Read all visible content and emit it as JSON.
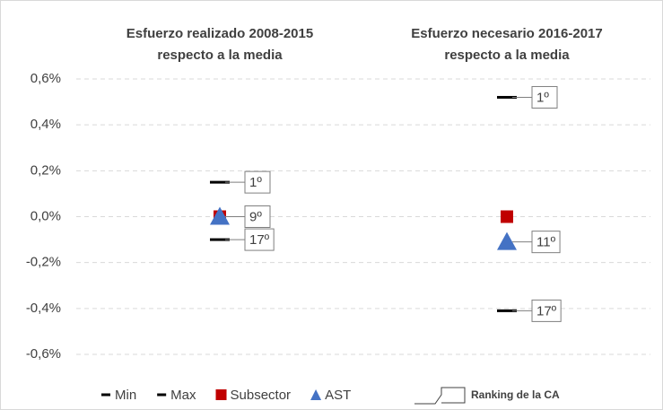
{
  "chart_data": {
    "type": "dot",
    "categories": [
      [
        "Esfuerzo realizado 2008-2015",
        "respecto a la media"
      ],
      [
        "Esfuerzo necesario 2016-2017",
        "respecto a la media"
      ]
    ],
    "series": [
      {
        "name": "Min",
        "color": "#000000",
        "marker": "dash",
        "values": [
          -0.1,
          -0.41
        ],
        "ranking": [
          "17º",
          "17º"
        ]
      },
      {
        "name": "Max",
        "color": "#000000",
        "marker": "dash",
        "values": [
          0.15,
          0.52
        ],
        "ranking": [
          "1º",
          "1º"
        ]
      },
      {
        "name": "Subsector",
        "color": "#c00000",
        "marker": "square",
        "values": [
          0.0,
          0.0
        ]
      },
      {
        "name": "AST",
        "color": "#4472c4",
        "marker": "triangle",
        "values": [
          0.0,
          -0.11
        ],
        "ranking": [
          "9º",
          "11º"
        ]
      }
    ],
    "ranking_legend": "Ranking de la CA",
    "ylim": [
      -0.6,
      0.6
    ],
    "yticks": [
      {
        "value": 0.6,
        "label": "0,6%"
      },
      {
        "value": 0.4,
        "label": "0,4%"
      },
      {
        "value": 0.2,
        "label": "0,2%"
      },
      {
        "value": 0.0,
        "label": "0,0%"
      },
      {
        "value": -0.2,
        "label": "-0,2%"
      },
      {
        "value": -0.4,
        "label": "-0,4%"
      },
      {
        "value": -0.6,
        "label": "-0,6%"
      }
    ],
    "grid": true
  }
}
